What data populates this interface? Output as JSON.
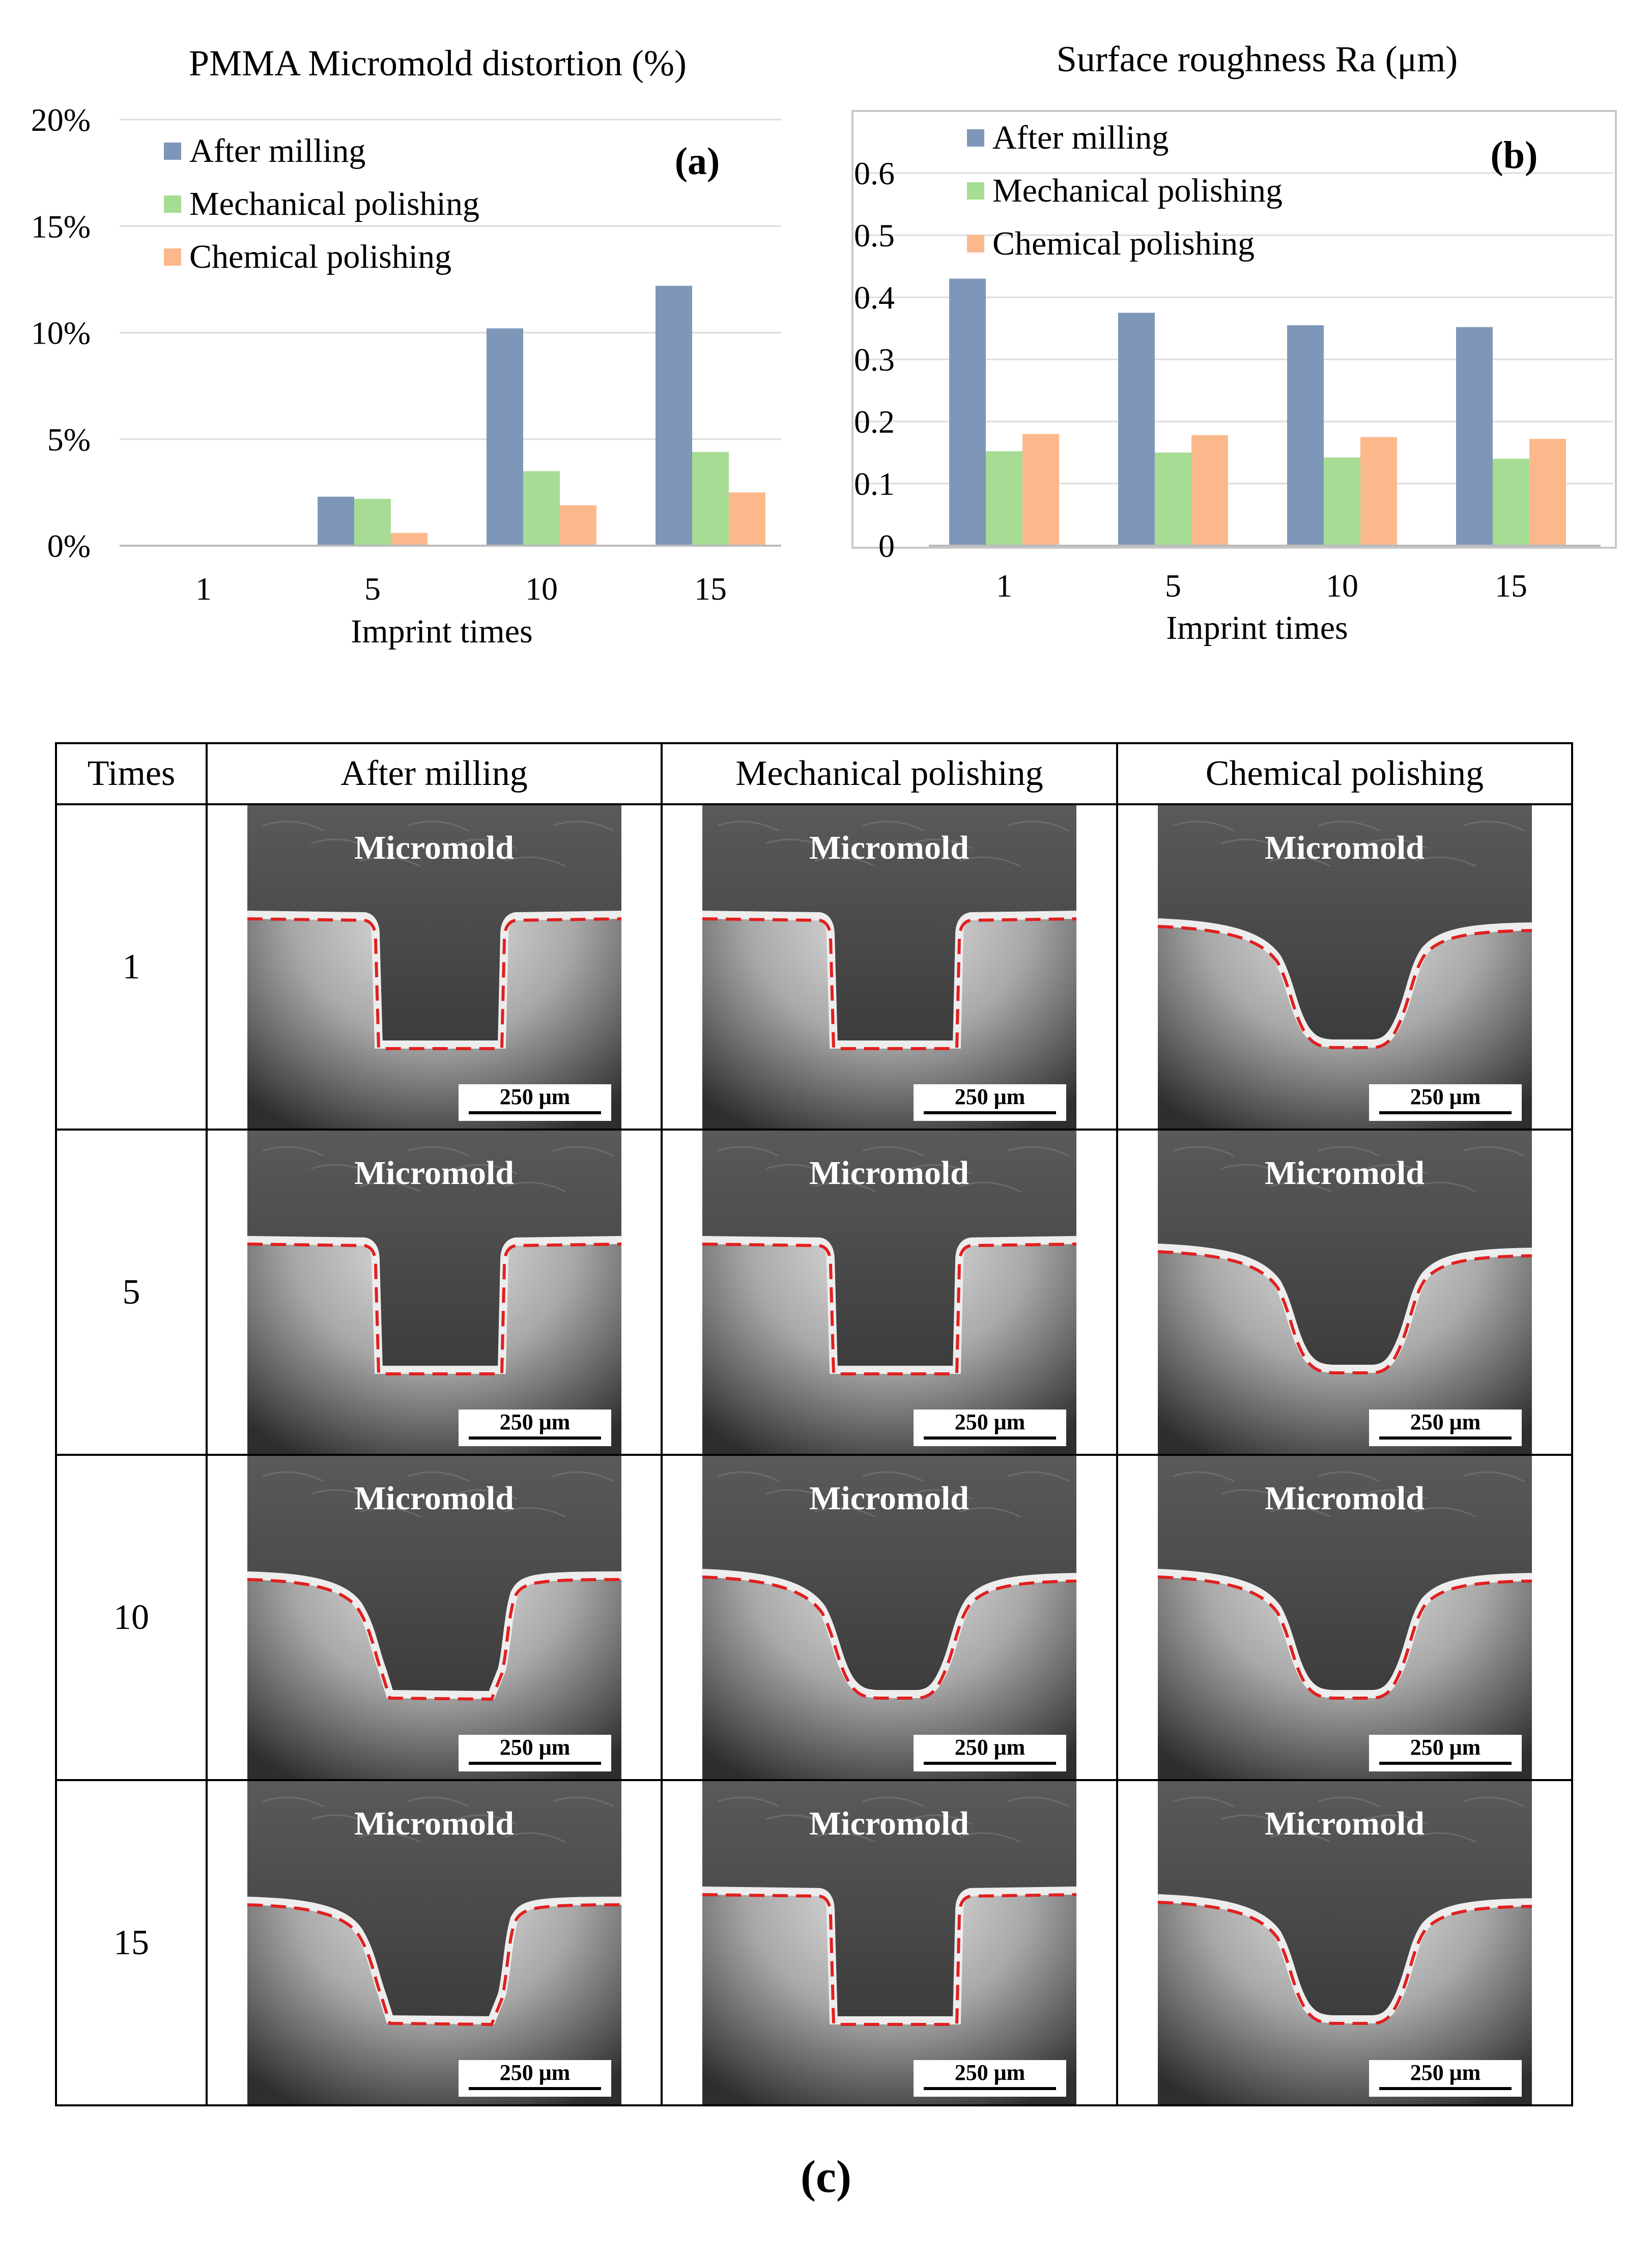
{
  "chart_data": [
    {
      "id": "a",
      "type": "bar",
      "title": "PMMA Micromold distortion (%)",
      "panel_label": "(a)",
      "xlabel": "Imprint times",
      "ylabel": "",
      "categories": [
        "1",
        "5",
        "10",
        "15"
      ],
      "ylim": [
        0,
        20
      ],
      "yticks": [
        0,
        5,
        10,
        15,
        20
      ],
      "ytick_labels": [
        "0%",
        "5%",
        "10%",
        "15%",
        "20%"
      ],
      "gridlines": true,
      "legend_position": "top-left",
      "series": [
        {
          "name": "After milling",
          "color": "#7e97b9",
          "values": [
            0,
            2.3,
            10.2,
            12.2
          ]
        },
        {
          "name": "Mechanical polishing",
          "color": "#a6dc93",
          "values": [
            0,
            2.2,
            3.5,
            4.4
          ]
        },
        {
          "name": "Chemical polishing",
          "color": "#fbb98b",
          "values": [
            0,
            0.6,
            1.9,
            2.5
          ]
        }
      ]
    },
    {
      "id": "b",
      "type": "bar",
      "title": "Surface roughness Ra (μm)",
      "panel_label": "(b)",
      "xlabel": "Imprint times",
      "ylabel": "",
      "categories": [
        "1",
        "5",
        "10",
        "15"
      ],
      "ylim": [
        0,
        0.7
      ],
      "yticks": [
        0,
        0.1,
        0.2,
        0.3,
        0.4,
        0.5,
        0.6
      ],
      "ytick_labels": [
        "0",
        "0.1",
        "0.2",
        "0.3",
        "0.4",
        "0.5",
        "0.6"
      ],
      "gridlines": true,
      "legend_position": "top-left",
      "series": [
        {
          "name": "After milling",
          "color": "#7e97b9",
          "values": [
            0.43,
            0.375,
            0.355,
            0.352
          ]
        },
        {
          "name": "Mechanical polishing",
          "color": "#a6dc93",
          "values": [
            0.152,
            0.15,
            0.142,
            0.14
          ]
        },
        {
          "name": "Chemical polishing",
          "color": "#fbb98b",
          "values": [
            0.18,
            0.178,
            0.175,
            0.172
          ]
        }
      ]
    }
  ],
  "table": {
    "header": [
      "Times",
      "After milling",
      "Mechanical polishing",
      "Chemical polishing"
    ],
    "rows": [
      {
        "times": "1",
        "images": [
          {
            "label": "Micromold",
            "scale": "250 μm",
            "shape": "square"
          },
          {
            "label": "Micromold",
            "scale": "250 μm",
            "shape": "square"
          },
          {
            "label": "Micromold",
            "scale": "250 μm",
            "shape": "rounded"
          }
        ]
      },
      {
        "times": "5",
        "images": [
          {
            "label": "Micromold",
            "scale": "250 μm",
            "shape": "square"
          },
          {
            "label": "Micromold",
            "scale": "250 μm",
            "shape": "square"
          },
          {
            "label": "Micromold",
            "scale": "250 μm",
            "shape": "rounded"
          }
        ]
      },
      {
        "times": "10",
        "images": [
          {
            "label": "Micromold",
            "scale": "250 μm",
            "shape": "wide"
          },
          {
            "label": "Micromold",
            "scale": "250 μm",
            "shape": "rounded"
          },
          {
            "label": "Micromold",
            "scale": "250 μm",
            "shape": "rounded"
          }
        ]
      },
      {
        "times": "15",
        "images": [
          {
            "label": "Micromold",
            "scale": "250 μm",
            "shape": "wide"
          },
          {
            "label": "Micromold",
            "scale": "250 μm",
            "shape": "square"
          },
          {
            "label": "Micromold",
            "scale": "250 μm",
            "shape": "rounded"
          }
        ]
      }
    ]
  },
  "caption": "(c)",
  "colors": {
    "outline_dash": "#e02020",
    "sem_dark": "#3a3a3a",
    "sem_light": "#d8d8d8"
  }
}
